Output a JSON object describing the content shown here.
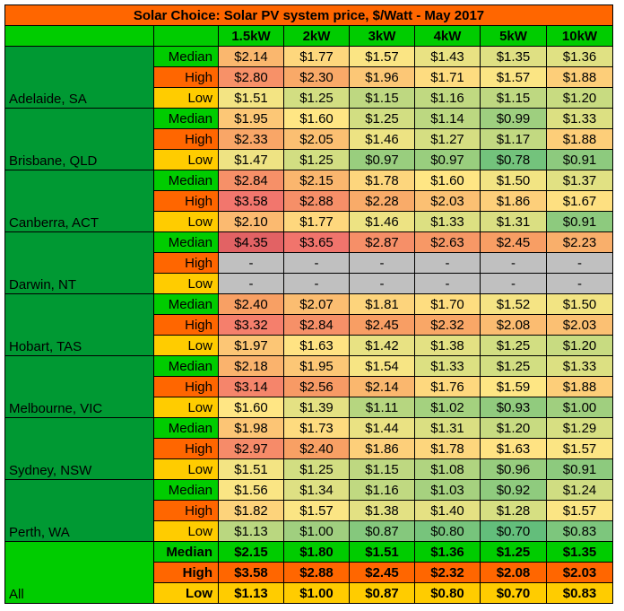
{
  "title": "Solar Choice: Solar PV system price, $/Watt - May 2017",
  "columns": [
    "1.5kW",
    "2kW",
    "3kW",
    "4kW",
    "5kW",
    "10kW"
  ],
  "colors": {
    "title_bg": "#ff6600",
    "header_bg": "#00cc00",
    "city_bg": "#009933",
    "median_label_bg": "#00cc00",
    "high_label_bg": "#ff6600",
    "low_label_bg": "#ffcc00",
    "no_data_bg": "#c0c0c0"
  },
  "chart_data": {
    "type": "table",
    "title": "Solar Choice: Solar PV system price, $/Watt - May 2017",
    "columns": [
      "1.5kW",
      "2kW",
      "3kW",
      "4kW",
      "5kW",
      "10kW"
    ],
    "groups": [
      {
        "city": "Adelaide, SA",
        "rows": [
          {
            "stat": "Median",
            "values": [
              "$2.14",
              "$1.77",
              "$1.57",
              "$1.43",
              "$1.35",
              "$1.36"
            ]
          },
          {
            "stat": "High",
            "values": [
              "$2.80",
              "$2.30",
              "$1.96",
              "$1.71",
              "$1.57",
              "$1.88"
            ]
          },
          {
            "stat": "Low",
            "values": [
              "$1.51",
              "$1.25",
              "$1.15",
              "$1.16",
              "$1.15",
              "$1.20"
            ]
          }
        ]
      },
      {
        "city": "Brisbane, QLD",
        "rows": [
          {
            "stat": "Median",
            "values": [
              "$1.95",
              "$1.60",
              "$1.25",
              "$1.14",
              "$0.99",
              "$1.33"
            ]
          },
          {
            "stat": "High",
            "values": [
              "$2.33",
              "$2.05",
              "$1.46",
              "$1.27",
              "$1.17",
              "$1.88"
            ]
          },
          {
            "stat": "Low",
            "values": [
              "$1.47",
              "$1.25",
              "$0.97",
              "$0.97",
              "$0.78",
              "$0.91"
            ]
          }
        ]
      },
      {
        "city": "Canberra, ACT",
        "rows": [
          {
            "stat": "Median",
            "values": [
              "$2.84",
              "$2.15",
              "$1.78",
              "$1.60",
              "$1.50",
              "$1.37"
            ]
          },
          {
            "stat": "High",
            "values": [
              "$3.58",
              "$2.88",
              "$2.28",
              "$2.03",
              "$1.86",
              "$1.67"
            ]
          },
          {
            "stat": "Low",
            "values": [
              "$2.10",
              "$1.77",
              "$1.46",
              "$1.33",
              "$1.31",
              "$0.91"
            ]
          }
        ]
      },
      {
        "city": "Darwin, NT",
        "rows": [
          {
            "stat": "Median",
            "values": [
              "$4.35",
              "$3.65",
              "$2.87",
              "$2.63",
              "$2.45",
              "$2.23"
            ]
          },
          {
            "stat": "High",
            "values": [
              "-",
              "-",
              "-",
              "-",
              "-",
              "-"
            ]
          },
          {
            "stat": "Low",
            "values": [
              "-",
              "-",
              "-",
              "-",
              "-",
              "-"
            ]
          }
        ]
      },
      {
        "city": "Hobart, TAS",
        "rows": [
          {
            "stat": "Median",
            "values": [
              "$2.40",
              "$2.07",
              "$1.81",
              "$1.70",
              "$1.52",
              "$1.50"
            ]
          },
          {
            "stat": "High",
            "values": [
              "$3.32",
              "$2.84",
              "$2.45",
              "$2.32",
              "$2.08",
              "$2.03"
            ]
          },
          {
            "stat": "Low",
            "values": [
              "$1.97",
              "$1.63",
              "$1.42",
              "$1.38",
              "$1.25",
              "$1.20"
            ]
          }
        ]
      },
      {
        "city": "Melbourne, VIC",
        "rows": [
          {
            "stat": "Median",
            "values": [
              "$2.18",
              "$1.95",
              "$1.54",
              "$1.33",
              "$1.25",
              "$1.33"
            ]
          },
          {
            "stat": "High",
            "values": [
              "$3.14",
              "$2.56",
              "$2.14",
              "$1.76",
              "$1.59",
              "$1.88"
            ]
          },
          {
            "stat": "Low",
            "values": [
              "$1.60",
              "$1.39",
              "$1.11",
              "$1.02",
              "$0.93",
              "$1.00"
            ]
          }
        ]
      },
      {
        "city": "Sydney, NSW",
        "rows": [
          {
            "stat": "Median",
            "values": [
              "$1.98",
              "$1.73",
              "$1.44",
              "$1.31",
              "$1.20",
              "$1.29"
            ]
          },
          {
            "stat": "High",
            "values": [
              "$2.97",
              "$2.40",
              "$1.86",
              "$1.78",
              "$1.63",
              "$1.57"
            ]
          },
          {
            "stat": "Low",
            "values": [
              "$1.51",
              "$1.25",
              "$1.15",
              "$1.08",
              "$0.96",
              "$0.91"
            ]
          }
        ]
      },
      {
        "city": "Perth, WA",
        "rows": [
          {
            "stat": "Median",
            "values": [
              "$1.56",
              "$1.34",
              "$1.16",
              "$1.03",
              "$0.92",
              "$1.24"
            ]
          },
          {
            "stat": "High",
            "values": [
              "$1.82",
              "$1.57",
              "$1.38",
              "$1.40",
              "$1.28",
              "$1.57"
            ]
          },
          {
            "stat": "Low",
            "values": [
              "$1.13",
              "$1.00",
              "$0.87",
              "$0.80",
              "$0.70",
              "$0.83"
            ]
          }
        ]
      },
      {
        "city": "All",
        "rows": [
          {
            "stat": "Median",
            "values": [
              "$2.15",
              "$1.80",
              "$1.51",
              "$1.36",
              "$1.25",
              "$1.35"
            ]
          },
          {
            "stat": "High",
            "values": [
              "$3.58",
              "$2.88",
              "$2.45",
              "$2.32",
              "$2.08",
              "$2.03"
            ]
          },
          {
            "stat": "Low",
            "values": [
              "$1.13",
              "$1.00",
              "$0.87",
              "$0.80",
              "$0.70",
              "$0.83"
            ]
          }
        ]
      }
    ]
  }
}
